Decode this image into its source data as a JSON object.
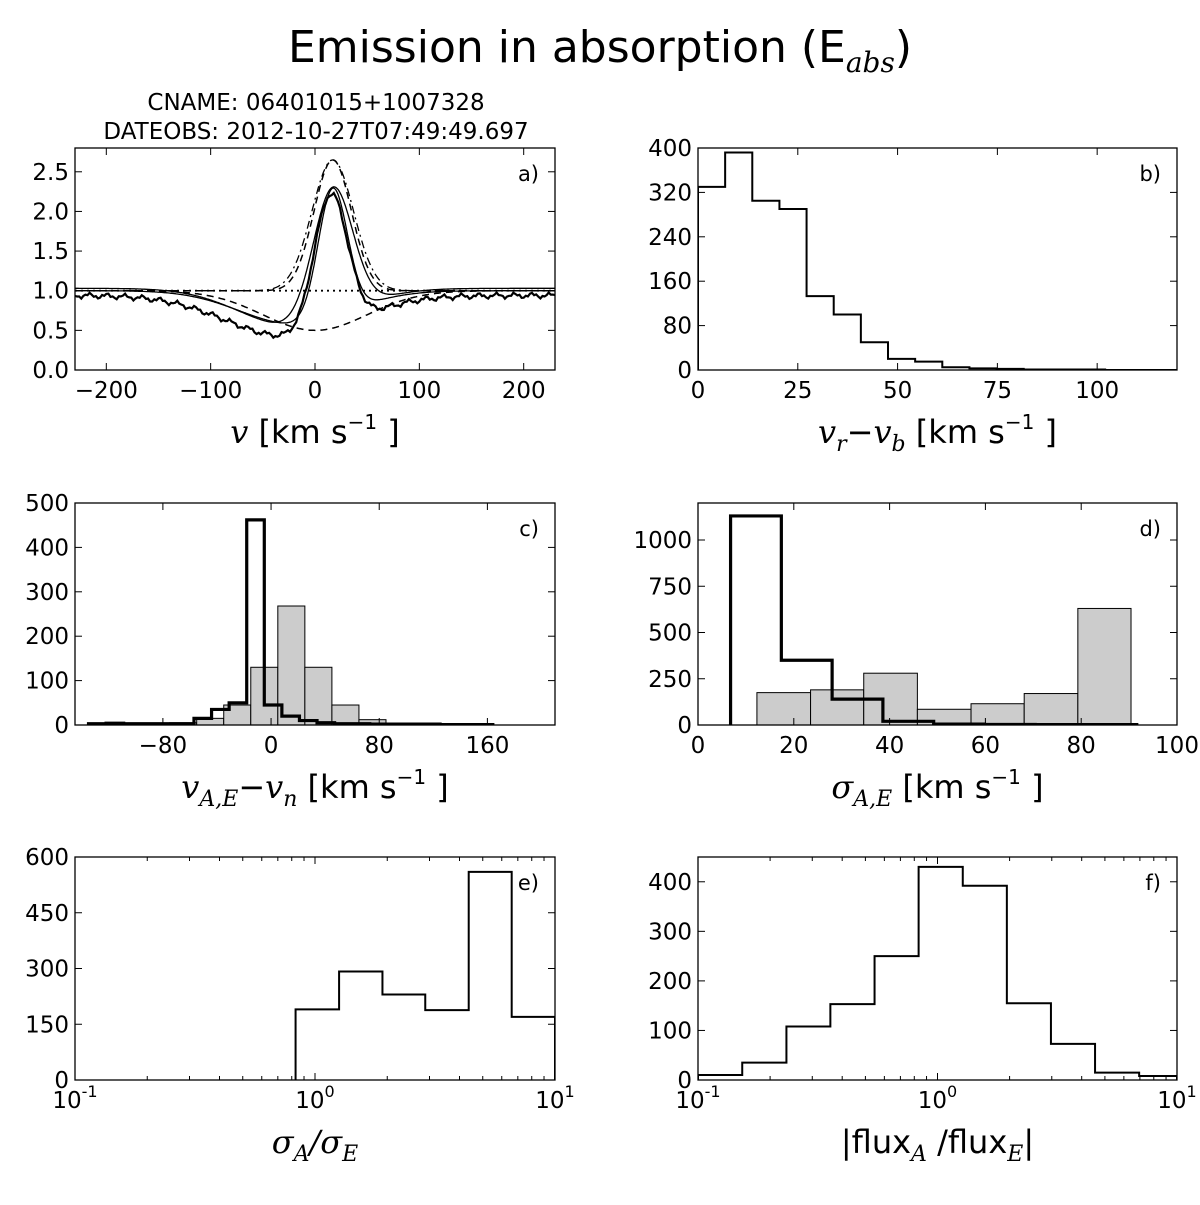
{
  "figure": {
    "title_main": "Emission in absorption (E",
    "title_sub": "abs",
    "title_close": ")",
    "cname": "CNAME: 06401015+1007328",
    "dateobs": "DATEOBS: 2012-10-27T07:49:49.697"
  },
  "chart_data": [
    {
      "id": "a",
      "panel_label": "a)",
      "type": "line",
      "xlabel": {
        "sym": "v",
        "unit": " [km s",
        "sup": "−1",
        "close": " ]"
      },
      "xlim": [
        -230,
        230
      ],
      "ylim": [
        0,
        2.8
      ],
      "xticks": [
        -200,
        -100,
        0,
        100,
        200
      ],
      "xticklabels": [
        "−200",
        "−100",
        "0",
        "100",
        "200"
      ],
      "yticks": [
        0,
        0.5,
        1,
        1.5,
        2,
        2.5
      ],
      "yticklabels": [
        "0.0",
        "0.5",
        "1.0",
        "1.5",
        "2.0",
        "2.5"
      ],
      "model": {
        "observed": {
          "cont": 1.0,
          "abs_amp": 0.52,
          "abs_mu": -25,
          "abs_sig": 60,
          "em_amp": 1.7,
          "em_mu": 15,
          "em_sig": 16
        },
        "fit_outer": {
          "cont": 1.03,
          "abs_amp": 0.48,
          "abs_mu": -20,
          "abs_sig": 52,
          "em_amp": 1.65,
          "em_mu": 17,
          "em_sig": 19
        },
        "fit_inner": {
          "cont": 1.0,
          "abs_amp": 0.42,
          "abs_mu": -20,
          "abs_sig": 52,
          "em_amp": 1.62,
          "em_mu": 17,
          "em_sig": 14
        },
        "absorption": {
          "cont": 1.0,
          "abs_amp": 0.5,
          "abs_mu": 0,
          "abs_sig": 50
        },
        "emission": {
          "cont": 1.0,
          "em_amp": 1.65,
          "em_mu": 17,
          "em_sig": 20
        }
      }
    },
    {
      "id": "b",
      "panel_label": "b)",
      "type": "bar",
      "xlabel": {
        "sym": "v",
        "sub1": "r",
        "minus": "−",
        "sym2": "v",
        "sub2": "b",
        "unit": " [km s",
        "sup": "−1",
        "close": " ]"
      },
      "xlim": [
        0,
        120
      ],
      "ylim": [
        0,
        400
      ],
      "xticks": [
        0,
        25,
        50,
        75,
        100
      ],
      "xticklabels": [
        "0",
        "25",
        "50",
        "75",
        "100"
      ],
      "yticks": [
        0,
        80,
        160,
        240,
        320,
        400
      ],
      "yticklabels": [
        "0",
        "80",
        "160",
        "240",
        "320",
        "400"
      ],
      "series": [
        {
          "style": "step",
          "edges": [
            0,
            6.8,
            13.6,
            20.4,
            27.2,
            34,
            40.8,
            47.6,
            54.4,
            61.2,
            68,
            74.8,
            81.6,
            88.4,
            95.2,
            102,
            108.8,
            115.6,
            120
          ],
          "values": [
            330,
            392,
            305,
            290,
            133,
            100,
            50,
            20,
            15,
            5,
            3,
            2,
            1,
            1,
            1,
            0,
            0,
            0
          ]
        }
      ]
    },
    {
      "id": "c",
      "panel_label": "c)",
      "type": "bar",
      "xlabel": {
        "sym": "v",
        "sub1": "A,E",
        "minus": "−",
        "sym2": "v",
        "sub2": "n",
        "unit": " [km s",
        "sup": "−1",
        "close": " ]"
      },
      "xlim": [
        -145,
        210
      ],
      "ylim": [
        0,
        500
      ],
      "xticks": [
        -80,
        0,
        80,
        160
      ],
      "xticklabels": [
        "−80",
        "0",
        "80",
        "160"
      ],
      "yticks": [
        0,
        100,
        200,
        300,
        400,
        500
      ],
      "yticklabels": [
        "0",
        "100",
        "200",
        "300",
        "400",
        "500"
      ],
      "series": [
        {
          "style": "filled",
          "edges": [
            -135,
            -115,
            -95,
            -75,
            -55,
            -35,
            -15,
            5,
            25,
            45,
            65,
            85,
            105
          ],
          "values": [
            2,
            2,
            2,
            5,
            15,
            45,
            130,
            268,
            130,
            45,
            12,
            3
          ]
        },
        {
          "style": "thick-step",
          "edges": [
            -135,
            -122,
            -109,
            -96,
            -83,
            -70,
            -57,
            -44,
            -31,
            -18,
            -5,
            8,
            21,
            34,
            47,
            60,
            73,
            86,
            99,
            112,
            125,
            138,
            151,
            164
          ],
          "values": [
            3,
            4,
            3,
            3,
            3,
            3,
            15,
            35,
            50,
            462,
            45,
            20,
            10,
            5,
            3,
            3,
            2,
            2,
            2,
            2,
            1,
            1,
            1
          ]
        }
      ]
    },
    {
      "id": "d",
      "panel_label": "d)",
      "type": "bar",
      "xlabel": {
        "sym": "σ",
        "sub1": "A,E",
        "unit": " [km s",
        "sup": "−1",
        "close": " ]"
      },
      "xlim": [
        0,
        100
      ],
      "ylim": [
        0,
        1200
      ],
      "xticks": [
        0,
        20,
        40,
        60,
        80,
        100
      ],
      "xticklabels": [
        "0",
        "20",
        "40",
        "60",
        "80",
        "100"
      ],
      "yticks": [
        0,
        250,
        500,
        750,
        1000
      ],
      "yticklabels": [
        "0",
        "250",
        "500",
        "750",
        "1000"
      ],
      "series": [
        {
          "style": "filled",
          "edges": [
            12.3,
            23.5,
            34.6,
            45.8,
            57,
            68.1,
            79.3,
            90.4
          ],
          "values": [
            175,
            190,
            280,
            85,
            115,
            170,
            630
          ]
        },
        {
          "style": "thick-step",
          "edges": [
            6.8,
            17.4,
            28,
            38.6,
            49.2,
            59.8,
            70.4,
            81,
            91.6
          ],
          "values": [
            1130,
            350,
            140,
            20,
            5,
            3,
            2,
            2
          ]
        }
      ]
    },
    {
      "id": "e",
      "panel_label": "e)",
      "type": "bar",
      "xscale": "log",
      "xlabel": {
        "sym": "σ",
        "sub1": "A",
        "slash": "/",
        "sym2": "σ",
        "sub2": "E"
      },
      "xlim": [
        0.1,
        10
      ],
      "ylim": [
        0,
        600
      ],
      "xticks": [
        0.1,
        1,
        10
      ],
      "xticklabels": [
        {
          "base": "10",
          "exp": "-1"
        },
        {
          "base": "10",
          "exp": "0"
        },
        {
          "base": "10",
          "exp": "1"
        }
      ],
      "yticks": [
        0,
        150,
        300,
        450,
        600
      ],
      "yticklabels": [
        "0",
        "150",
        "300",
        "450",
        "600"
      ],
      "series": [
        {
          "style": "step",
          "edges": [
            0.83,
            1.26,
            1.91,
            2.88,
            4.37,
            6.6,
            10
          ],
          "values": [
            190,
            292,
            230,
            188,
            560,
            170
          ]
        }
      ]
    },
    {
      "id": "f",
      "panel_label": "f)",
      "type": "bar",
      "xscale": "log",
      "xlabel": {
        "bar1": "|",
        "t1": "flux",
        "sub1": "A",
        "slash": " /",
        "t2": "flux",
        "sub2": "E",
        "bar2": "|"
      },
      "xlim": [
        0.1,
        10
      ],
      "ylim": [
        0,
        450
      ],
      "xticks": [
        0.1,
        1,
        10
      ],
      "xticklabels": [
        {
          "base": "10",
          "exp": "-1"
        },
        {
          "base": "10",
          "exp": "0"
        },
        {
          "base": "10",
          "exp": "1"
        }
      ],
      "yticks": [
        0,
        100,
        200,
        300,
        400
      ],
      "yticklabels": [
        "0",
        "100",
        "200",
        "300",
        "400"
      ],
      "series": [
        {
          "style": "step",
          "edges": [
            0.1,
            0.153,
            0.234,
            0.357,
            0.546,
            0.834,
            1.275,
            1.948,
            2.976,
            4.548,
            6.95,
            10
          ],
          "values": [
            10,
            35,
            108,
            153,
            250,
            430,
            392,
            155,
            73,
            15,
            8
          ]
        }
      ]
    }
  ]
}
